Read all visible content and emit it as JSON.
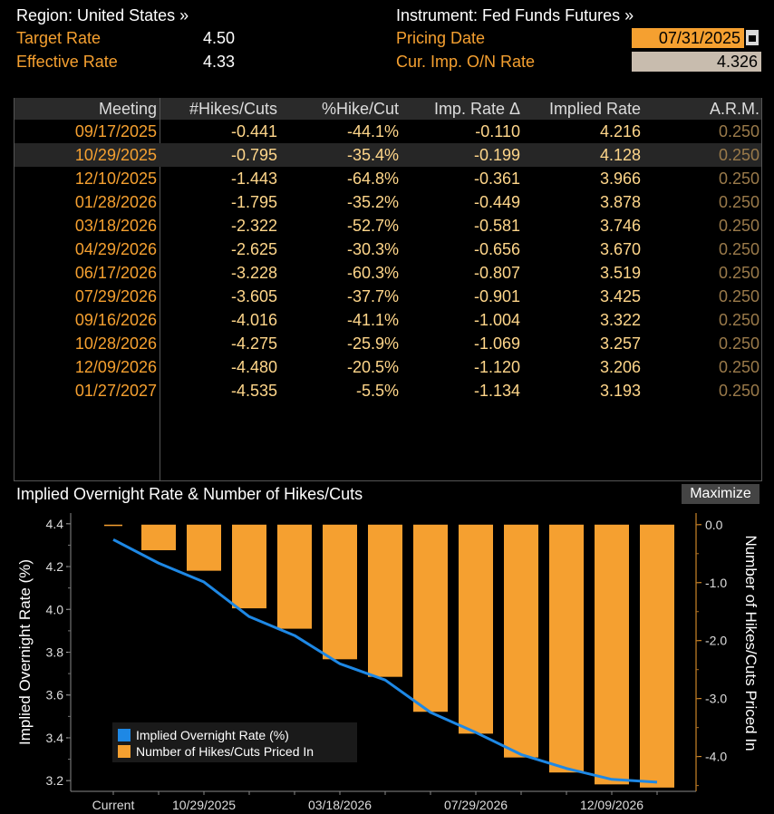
{
  "header": {
    "region_label": "Region: United States »",
    "instrument_label": "Instrument: Fed Funds Futures »",
    "target_rate_label": "Target Rate",
    "target_rate_value": "4.50",
    "effective_rate_label": "Effective Rate",
    "effective_rate_value": "4.33",
    "pricing_date_label": "Pricing Date",
    "pricing_date_value": "07/31/2025",
    "on_rate_label": "Cur. Imp. O/N Rate",
    "on_rate_value": "4.326"
  },
  "table": {
    "columns": [
      "Meeting",
      "#Hikes/Cuts",
      "%Hike/Cut",
      "Imp. Rate Δ",
      "Implied Rate",
      "A.R.M."
    ],
    "rows": [
      [
        "09/17/2025",
        "-0.441",
        "-44.1%",
        "-0.110",
        "4.216",
        "0.250"
      ],
      [
        "10/29/2025",
        "-0.795",
        "-35.4%",
        "-0.199",
        "4.128",
        "0.250"
      ],
      [
        "12/10/2025",
        "-1.443",
        "-64.8%",
        "-0.361",
        "3.966",
        "0.250"
      ],
      [
        "01/28/2026",
        "-1.795",
        "-35.2%",
        "-0.449",
        "3.878",
        "0.250"
      ],
      [
        "03/18/2026",
        "-2.322",
        "-52.7%",
        "-0.581",
        "3.746",
        "0.250"
      ],
      [
        "04/29/2026",
        "-2.625",
        "-30.3%",
        "-0.656",
        "3.670",
        "0.250"
      ],
      [
        "06/17/2026",
        "-3.228",
        "-60.3%",
        "-0.807",
        "3.519",
        "0.250"
      ],
      [
        "07/29/2026",
        "-3.605",
        "-37.7%",
        "-0.901",
        "3.425",
        "0.250"
      ],
      [
        "09/16/2026",
        "-4.016",
        "-41.1%",
        "-1.004",
        "3.322",
        "0.250"
      ],
      [
        "10/28/2026",
        "-4.275",
        "-25.9%",
        "-1.069",
        "3.257",
        "0.250"
      ],
      [
        "12/09/2026",
        "-4.480",
        "-20.5%",
        "-1.120",
        "3.206",
        "0.250"
      ],
      [
        "01/27/2027",
        "-4.535",
        "-5.5%",
        "-1.134",
        "3.193",
        "0.250"
      ]
    ]
  },
  "chart": {
    "title": "Implied Overnight Rate & Number of Hikes/Cuts",
    "maximize_label": "Maximize"
  },
  "chart_data": {
    "type": "bar",
    "title": "Implied Overnight Rate & Number of Hikes/Cuts",
    "categories": [
      "Current",
      "09/17/2025",
      "10/29/2025",
      "12/10/2025",
      "01/28/2026",
      "03/18/2026",
      "04/29/2026",
      "06/17/2026",
      "07/29/2026",
      "09/16/2026",
      "10/28/2026",
      "12/09/2026",
      "01/27/2027"
    ],
    "x_tick_labels": [
      "Current",
      "10/29/2025",
      "03/18/2026",
      "07/29/2026",
      "12/09/2026"
    ],
    "ylabel_left": "Implied Overnight Rate (%)",
    "ylabel_right": "Number of Hikes/Cuts Priced In",
    "ylim_left": [
      3.15,
      4.45
    ],
    "yticks_left": [
      "4.4",
      "4.2",
      "4.0",
      "3.8",
      "3.6",
      "3.4",
      "3.2"
    ],
    "ylim_right": [
      -4.6,
      0.2
    ],
    "yticks_right": [
      "0.0",
      "-1.0",
      "-2.0",
      "-3.0",
      "-4.0"
    ],
    "legend_position": "bottom-left",
    "series": [
      {
        "name": "Implied Overnight Rate (%)",
        "type": "line",
        "axis": "left",
        "color": "#1e88e5",
        "values": [
          4.326,
          4.216,
          4.128,
          3.966,
          3.878,
          3.746,
          3.67,
          3.519,
          3.425,
          3.322,
          3.257,
          3.206,
          3.193
        ]
      },
      {
        "name": "Number of Hikes/Cuts Priced In",
        "type": "bar",
        "axis": "right",
        "color": "#f5a030",
        "values": [
          0.0,
          -0.441,
          -0.795,
          -1.443,
          -1.795,
          -2.322,
          -2.625,
          -3.228,
          -3.605,
          -4.016,
          -4.275,
          -4.48,
          -4.535
        ]
      }
    ]
  }
}
